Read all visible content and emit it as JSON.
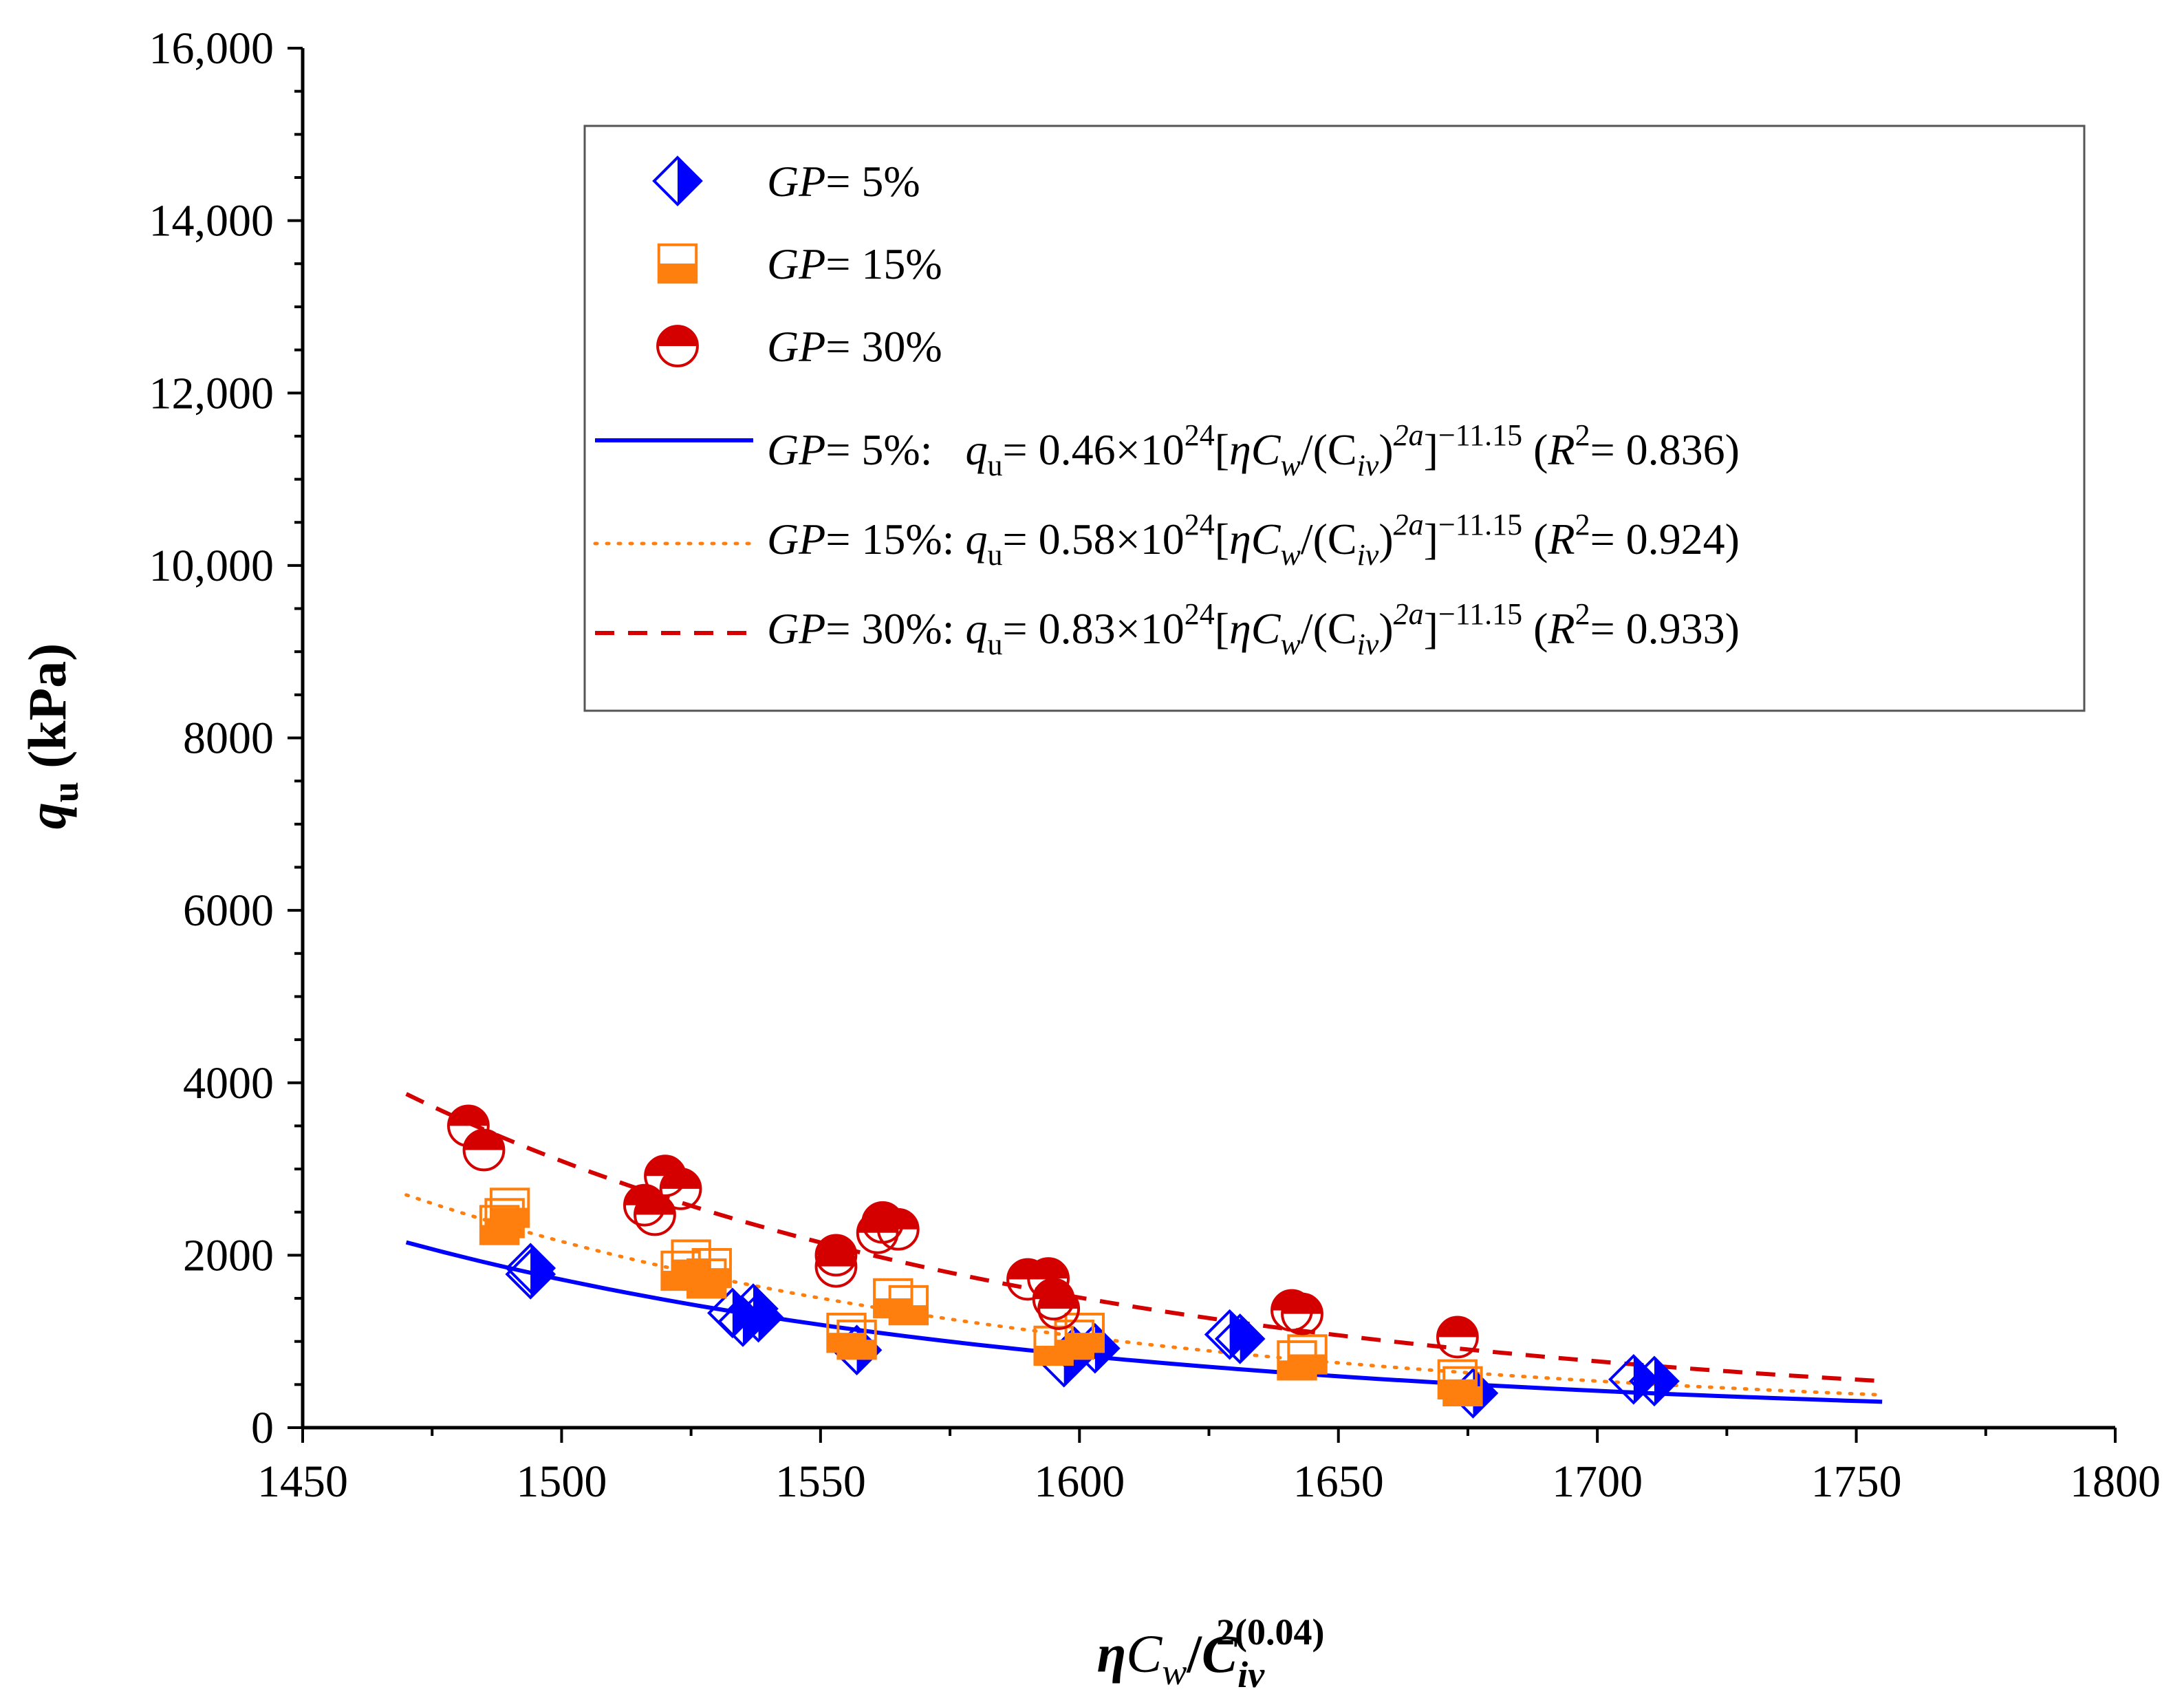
{
  "chart_data": {
    "type": "scatter",
    "title": "",
    "xlabel": "ηC_w/C_iv^2(0.04)",
    "ylabel": "q_u (kPa)",
    "x_axis": {
      "label_parts": {
        "eta": "η",
        "c": "C",
        "w": "w",
        "slash": "/",
        "c2": "C",
        "sub": "iv",
        "sup": "2(0.04)"
      },
      "xlim": [
        1450,
        1800
      ],
      "ticks": [
        1450,
        1500,
        1550,
        1600,
        1650,
        1700,
        1750,
        1800
      ],
      "tick_labels": [
        "1450",
        "1500",
        "1550",
        "1600",
        "1650",
        "1700",
        "1750",
        "1800"
      ]
    },
    "y_axis": {
      "label_parts": {
        "q": "q",
        "sub": "u",
        "unit": " (kPa)"
      },
      "ylim": [
        0,
        16000
      ],
      "ticks": [
        0,
        2000,
        4000,
        6000,
        8000,
        10000,
        12000,
        14000,
        16000
      ],
      "tick_labels": [
        "0",
        "2000",
        "4000",
        "6000",
        "8000",
        "10,000",
        "12,000",
        "14,000",
        "16,000"
      ]
    },
    "grid": false,
    "legend_position": "top-right",
    "series": [
      {
        "name": "GP= 5%",
        "marker": "diamond-half",
        "color": "#0000ff",
        "points": [
          [
            1494,
            1850
          ],
          [
            1494,
            1780
          ],
          [
            1533,
            1330
          ],
          [
            1535,
            1230
          ],
          [
            1537,
            1380
          ],
          [
            1538,
            1280
          ],
          [
            1557,
            900
          ],
          [
            1597,
            760
          ],
          [
            1599,
            880
          ],
          [
            1603,
            920
          ],
          [
            1629,
            1080
          ],
          [
            1631,
            1030
          ],
          [
            1676,
            400
          ],
          [
            1707,
            560
          ],
          [
            1711,
            540
          ]
        ]
      },
      {
        "name": "GP= 15%",
        "marker": "square-half",
        "color": "#ff7f0e",
        "points": [
          [
            1488,
            2350
          ],
          [
            1489,
            2430
          ],
          [
            1490,
            2550
          ],
          [
            1523,
            1820
          ],
          [
            1525,
            1950
          ],
          [
            1528,
            1730
          ],
          [
            1529,
            1850
          ],
          [
            1555,
            1100
          ],
          [
            1557,
            1020
          ],
          [
            1564,
            1500
          ],
          [
            1567,
            1420
          ],
          [
            1595,
            950
          ],
          [
            1599,
            1020
          ],
          [
            1601,
            1100
          ],
          [
            1642,
            780
          ],
          [
            1644,
            850
          ],
          [
            1673,
            560
          ],
          [
            1674,
            480
          ]
        ]
      },
      {
        "name": "GP= 30%",
        "marker": "circle-half",
        "color": "#d40000",
        "points": [
          [
            1482,
            3500
          ],
          [
            1485,
            3220
          ],
          [
            1516,
            2580
          ],
          [
            1518,
            2470
          ],
          [
            1520,
            2920
          ],
          [
            1523,
            2770
          ],
          [
            1553,
            2000
          ],
          [
            1553,
            1870
          ],
          [
            1561,
            2260
          ],
          [
            1562,
            2380
          ],
          [
            1565,
            2300
          ],
          [
            1590,
            1720
          ],
          [
            1594,
            1730
          ],
          [
            1595,
            1490
          ],
          [
            1596,
            1380
          ],
          [
            1641,
            1360
          ],
          [
            1643,
            1320
          ],
          [
            1673,
            1050
          ]
        ]
      }
    ],
    "fits": [
      {
        "name": "GP= 5% fit",
        "color": "#0000ff",
        "style": "solid",
        "coef": 0.46,
        "x": [
          1470,
          1755
        ],
        "y_endpoints": [
          2150,
          300
        ]
      },
      {
        "name": "GP= 15% fit",
        "color": "#ff7f0e",
        "style": "dotted",
        "coef": 0.58,
        "x": [
          1470,
          1755
        ],
        "y_endpoints": [
          2700,
          380
        ]
      },
      {
        "name": "GP= 30% fit",
        "color": "#d40000",
        "style": "dashed",
        "coef": 0.83,
        "x": [
          1470,
          1755
        ],
        "y_endpoints": [
          3870,
          540
        ]
      }
    ],
    "legend": {
      "marker_entries": [
        {
          "gp": "GP",
          "value": "= 5%"
        },
        {
          "gp": "GP",
          "value": "= 15%"
        },
        {
          "gp": "GP",
          "value": "= 30%"
        }
      ],
      "fit_entries": [
        {
          "gp": "GP",
          "pct": "= 5%:",
          "q": "q",
          "u": "u",
          "coef": "= 0.46×10",
          "exp24": "24",
          "bracket_open": "[",
          "eta": "η",
          "c": "C",
          "w": "w",
          "mid": "/(",
          "c2": "C",
          "iv": "iv",
          "paren": ")",
          "two_a": "2a",
          "bracket_close": "]",
          "neg_exp": "−11.15",
          "r_open": " (",
          "r": "R",
          "r_sup": "2",
          "r_val": "= 0.836)"
        },
        {
          "gp": "GP",
          "pct": "= 15%:",
          "q": "q",
          "u": "u",
          "coef": "= 0.58×10",
          "exp24": "24",
          "bracket_open": "[",
          "eta": "η",
          "c": "C",
          "w": "w",
          "mid": "/(",
          "c2": "C",
          "iv": "iv",
          "paren": ")",
          "two_a": "2a",
          "bracket_close": "]",
          "neg_exp": "−11.15",
          "r_open": " (",
          "r": "R",
          "r_sup": "2",
          "r_val": "= 0.924)"
        },
        {
          "gp": "GP",
          "pct": "= 30%:",
          "q": "q",
          "u": "u",
          "coef": "= 0.83×10",
          "exp24": "24",
          "bracket_open": "[",
          "eta": "η",
          "c": "C",
          "w": "w",
          "mid": "/(",
          "c2": "C",
          "iv": "iv",
          "paren": ")",
          "two_a": "2a",
          "bracket_close": "]",
          "neg_exp": "−11.15",
          "r_open": " (",
          "r": "R",
          "r_sup": "2",
          "r_val": "= 0.933)"
        }
      ]
    }
  }
}
